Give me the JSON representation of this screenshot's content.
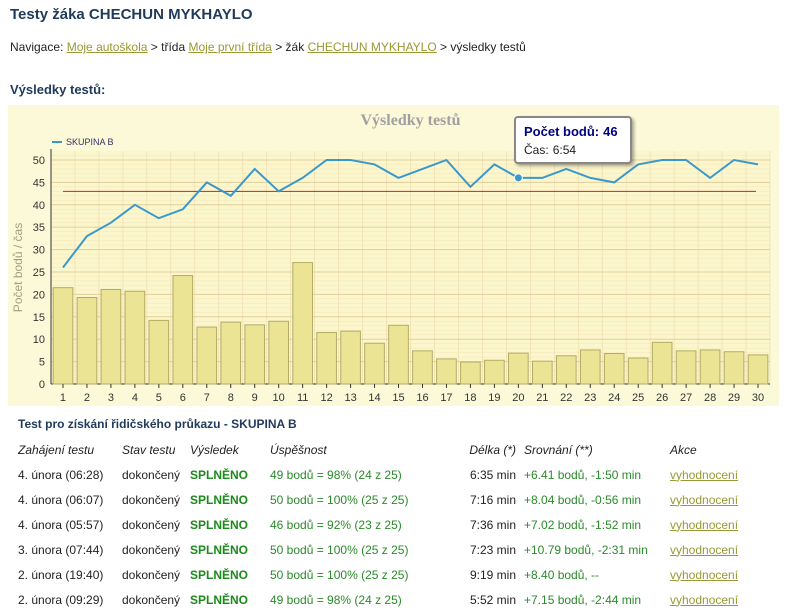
{
  "page": {
    "title": "Testy žáka CHECHUN MYKHAYLO",
    "breadcrumb": {
      "prefix": "Navigace:",
      "link1": "Moje autoškola",
      "sep1": "> třída",
      "link2": "Moje první třída",
      "sep2": "> žák",
      "link3": "CHECHUN MYKHAYLO",
      "sep3": "> výsledky testů"
    },
    "section_title": "Výsledky testů:"
  },
  "tooltip": {
    "label1": "Počet bodů:",
    "value1": "46",
    "label2": "Čas:",
    "value2": "6:54",
    "index": 20
  },
  "chart_data": {
    "type": "bar",
    "title": "Výsledky testů",
    "ylabel": "Počet bodů / čas",
    "ylim": [
      0,
      52
    ],
    "yticks": [
      0,
      5,
      10,
      15,
      20,
      25,
      30,
      35,
      40,
      45,
      50
    ],
    "categories": [
      "1",
      "2",
      "3",
      "4",
      "5",
      "6",
      "7",
      "8",
      "9",
      "10",
      "11",
      "12",
      "13",
      "14",
      "15",
      "16",
      "17",
      "18",
      "19",
      "20",
      "21",
      "22",
      "23",
      "24",
      "25",
      "26",
      "27",
      "28",
      "29",
      "30"
    ],
    "series": [
      {
        "name": "",
        "type": "bar",
        "values": [
          21.5,
          19.3,
          21.1,
          20.7,
          14.2,
          24.2,
          12.7,
          13.8,
          13.2,
          14.0,
          27.1,
          11.5,
          11.8,
          9.1,
          13.1,
          7.4,
          5.6,
          4.9,
          5.3,
          6.9,
          5.1,
          6.3,
          7.6,
          6.8,
          5.8,
          9.3,
          7.4,
          7.6,
          7.2,
          6.5
        ]
      },
      {
        "name": "SKUPINA B",
        "type": "line",
        "values": [
          26,
          33,
          36,
          40,
          37,
          39,
          45,
          42,
          48,
          43,
          46,
          50,
          50,
          49,
          46,
          48,
          50,
          44,
          49,
          46,
          46,
          48,
          46,
          45,
          49,
          50,
          50,
          46,
          50,
          49
        ]
      }
    ],
    "threshold": 43,
    "colors": {
      "bar": "#ece495",
      "bar_stroke": "#b2ac62",
      "line": "#3a99cc",
      "threshold": "#cc2222",
      "plot_bg": "#fcf6cc",
      "grid": "#eedcb0",
      "outer_bg": "#fcf9d8"
    }
  },
  "table": {
    "title": "Test pro získání řidičského průkazu - SKUPINA B",
    "headers": [
      "Zahájení testu",
      "Stav testu",
      "Výsledek",
      "Úspěšnost",
      "Délka (*)",
      "Srovnání (**)",
      "Akce"
    ],
    "rows": [
      [
        "4. února (06:28)",
        "dokončený",
        "SPLNĚNO",
        "49 bodů = 98% (24 z 25)",
        "6:35 min",
        "+6.41 bodů, -1:50 min",
        "vyhodnocení"
      ],
      [
        "4. února (06:07)",
        "dokončený",
        "SPLNĚNO",
        "50 bodů = 100% (25 z 25)",
        "7:16 min",
        "+8.04 bodů, -0:56 min",
        "vyhodnocení"
      ],
      [
        "4. února (05:57)",
        "dokončený",
        "SPLNĚNO",
        "46 bodů = 92% (23 z 25)",
        "7:36 min",
        "+7.02 bodů, -1:52 min",
        "vyhodnocení"
      ],
      [
        "3. února (07:44)",
        "dokončený",
        "SPLNĚNO",
        "50 bodů = 100% (25 z 25)",
        "7:23 min",
        "+10.79 bodů, -2:31 min",
        "vyhodnocení"
      ],
      [
        "2. února (19:40)",
        "dokončený",
        "SPLNĚNO",
        "50 bodů = 100% (25 z 25)",
        "9:19 min",
        "+8.40 bodů, --",
        "vyhodnocení"
      ],
      [
        "2. února (09:29)",
        "dokončený",
        "SPLNĚNO",
        "49 bodů = 98% (24 z 25)",
        "5:52 min",
        "+7.15 bodů, -2:44 min",
        "vyhodnocení"
      ]
    ]
  }
}
